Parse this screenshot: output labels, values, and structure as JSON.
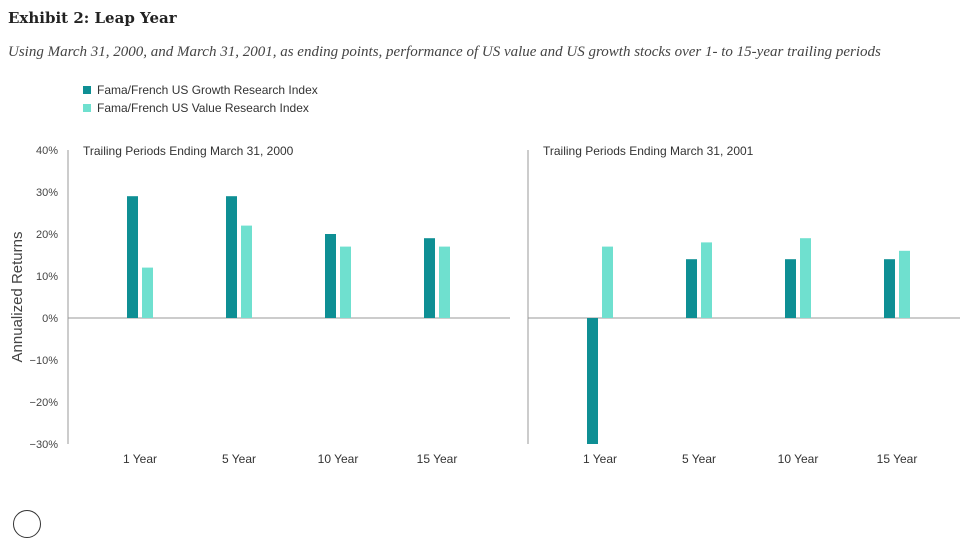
{
  "title": "Exhibit 2: Leap Year",
  "subtitle": "Using March 31, 2000, and March 31, 2001, as ending points, performance of US value and US growth stocks over 1- to 15-year trailing periods",
  "legend": [
    {
      "label": "Fama/French US Growth Research Index",
      "color": "#0e8f94"
    },
    {
      "label": "Fama/French US Value Research Index",
      "color": "#6fe0cf"
    }
  ],
  "chart_data": {
    "type": "bar",
    "ylabel": "Annualized Returns",
    "ylim": [
      -30,
      40
    ],
    "yticks": [
      40,
      30,
      20,
      10,
      0,
      -10,
      -20,
      -30
    ],
    "ytick_labels": [
      "40%",
      "30%",
      "20%",
      "10%",
      "0%",
      "−10%",
      "−20%",
      "−30%"
    ],
    "panels": [
      {
        "title": "Trailing Periods Ending March 31, 2000",
        "categories": [
          "1 Year",
          "5 Year",
          "10 Year",
          "15 Year"
        ],
        "series": [
          {
            "name": "Fama/French US Growth Research Index",
            "values": [
              29,
              29,
              20,
              19
            ]
          },
          {
            "name": "Fama/French US Value Research Index",
            "values": [
              12,
              22,
              17,
              17
            ]
          }
        ]
      },
      {
        "title": "Trailing Periods Ending March 31, 2001",
        "categories": [
          "1 Year",
          "5 Year",
          "10 Year",
          "15 Year"
        ],
        "series": [
          {
            "name": "Fama/French US Growth Research Index",
            "values": [
              -30,
              14,
              14,
              14
            ]
          },
          {
            "name": "Fama/French US Value Research Index",
            "values": [
              17,
              18,
              19,
              16
            ]
          }
        ]
      }
    ]
  }
}
